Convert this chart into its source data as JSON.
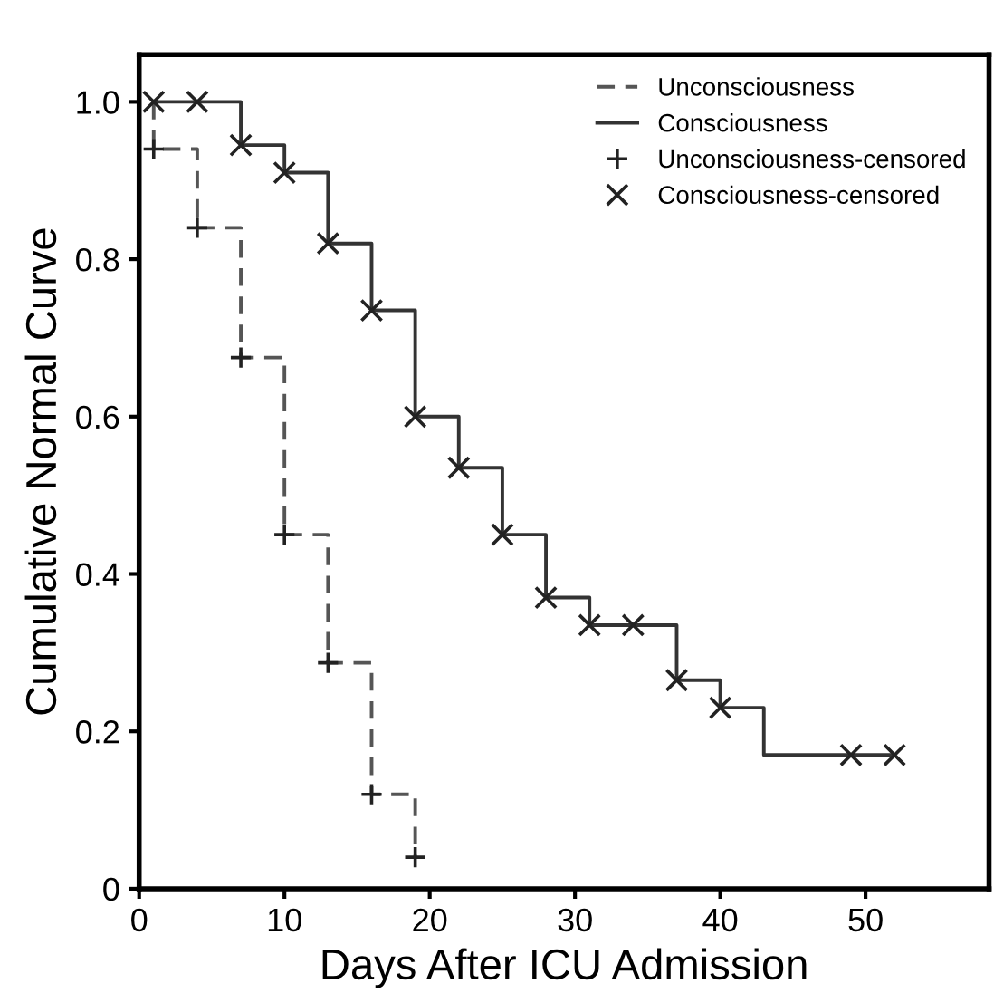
{
  "chart_data": {
    "type": "step",
    "xlabel": "Days After ICU Admission",
    "ylabel": "Cumulative Normal Curve",
    "xlim": [
      0,
      58.5
    ],
    "xticks": [
      0,
      10,
      20,
      30,
      40,
      50
    ],
    "ylim": [
      0,
      1.06
    ],
    "yticks": [
      {
        "value": 0,
        "label": "0"
      },
      {
        "value": 0.2,
        "label": "0.2"
      },
      {
        "value": 0.4,
        "label": "0.4"
      },
      {
        "value": 0.6,
        "label": "0.6"
      },
      {
        "value": 0.8,
        "label": "0.8"
      },
      {
        "value": 1.0,
        "label": "1.0"
      }
    ],
    "grid": false,
    "legend": "top right",
    "series": [
      {
        "name": "Unconsciousness",
        "line_style": "dashed",
        "marker": "none",
        "color": "#555555",
        "x": [
          1,
          1,
          4,
          7,
          10,
          13,
          16,
          19
        ],
        "values": [
          1.0,
          0.94,
          0.84,
          0.675,
          0.45,
          0.287,
          0.12,
          0.04
        ]
      },
      {
        "name": "Consciousness",
        "line_style": "solid",
        "marker": "none",
        "color": "#333333",
        "x": [
          1,
          7,
          10,
          13,
          16,
          19,
          22,
          25,
          28,
          31,
          37,
          40,
          43,
          52
        ],
        "values": [
          1.0,
          0.945,
          0.91,
          0.82,
          0.735,
          0.6,
          0.535,
          0.45,
          0.37,
          0.335,
          0.265,
          0.23,
          0.17,
          0.17
        ]
      },
      {
        "name": "Unconsciousness-censored",
        "type": "scatter",
        "marker": "cross",
        "color": "#222222",
        "x": [
          1,
          4,
          7,
          10,
          13,
          16,
          19
        ],
        "values": [
          0.94,
          0.84,
          0.675,
          0.45,
          0.287,
          0.12,
          0.04
        ]
      },
      {
        "name": "Consciousness-censored",
        "type": "scatter",
        "marker": "x",
        "color": "#222222",
        "x": [
          1,
          4,
          7,
          10,
          13,
          16,
          19,
          22,
          25,
          28,
          31,
          34,
          37,
          40,
          49,
          52
        ],
        "values": [
          1.0,
          1.0,
          0.945,
          0.91,
          0.82,
          0.735,
          0.6,
          0.535,
          0.45,
          0.37,
          0.335,
          0.335,
          0.265,
          0.23,
          0.17,
          0.17
        ]
      }
    ]
  }
}
